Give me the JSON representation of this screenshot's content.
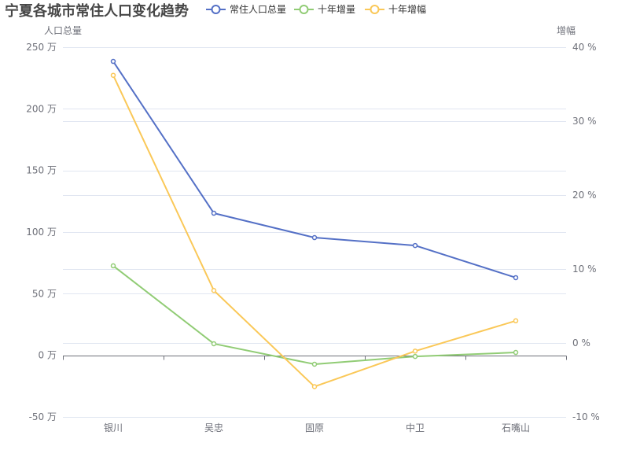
{
  "chart_data": {
    "type": "line",
    "title": "宁夏各城市常住人口变化趋势",
    "legend_position": "top",
    "grid": true,
    "categories": [
      "银川",
      "吴忠",
      "固原",
      "中卫",
      "石嘴山"
    ],
    "y_left": {
      "label": "人口总量",
      "range": [
        -50,
        250
      ],
      "ticks": [
        {
          "value": 250,
          "label": "250 万"
        },
        {
          "value": 200,
          "label": "200 万"
        },
        {
          "value": 150,
          "label": "150 万"
        },
        {
          "value": 100,
          "label": "100 万"
        },
        {
          "value": 50,
          "label": "50 万"
        },
        {
          "value": 0,
          "label": "0 万"
        },
        {
          "value": -50,
          "label": "-50 万"
        }
      ]
    },
    "y_right": {
      "label": "增幅",
      "range": [
        -10,
        40
      ],
      "ticks": [
        {
          "value": 40,
          "label": "40 %"
        },
        {
          "value": 30,
          "label": "30 %"
        },
        {
          "value": 20,
          "label": "20 %"
        },
        {
          "value": 10,
          "label": "10 %"
        },
        {
          "value": 0,
          "label": "0 %"
        },
        {
          "value": -10,
          "label": "-10 %"
        }
      ]
    },
    "series": [
      {
        "name": "常住人口总量",
        "axis": "left",
        "color": "#5470c6",
        "values": [
          238.5,
          115.3,
          95.5,
          89.1,
          63.0
        ]
      },
      {
        "name": "十年增量",
        "axis": "left",
        "color": "#91cc75",
        "values": [
          72.6,
          9.4,
          -7.2,
          -0.9,
          2.3
        ]
      },
      {
        "name": "十年增幅",
        "axis": "right",
        "color": "#fac858",
        "values": [
          36.2,
          7.1,
          -5.9,
          -1.1,
          3.0
        ]
      }
    ]
  }
}
